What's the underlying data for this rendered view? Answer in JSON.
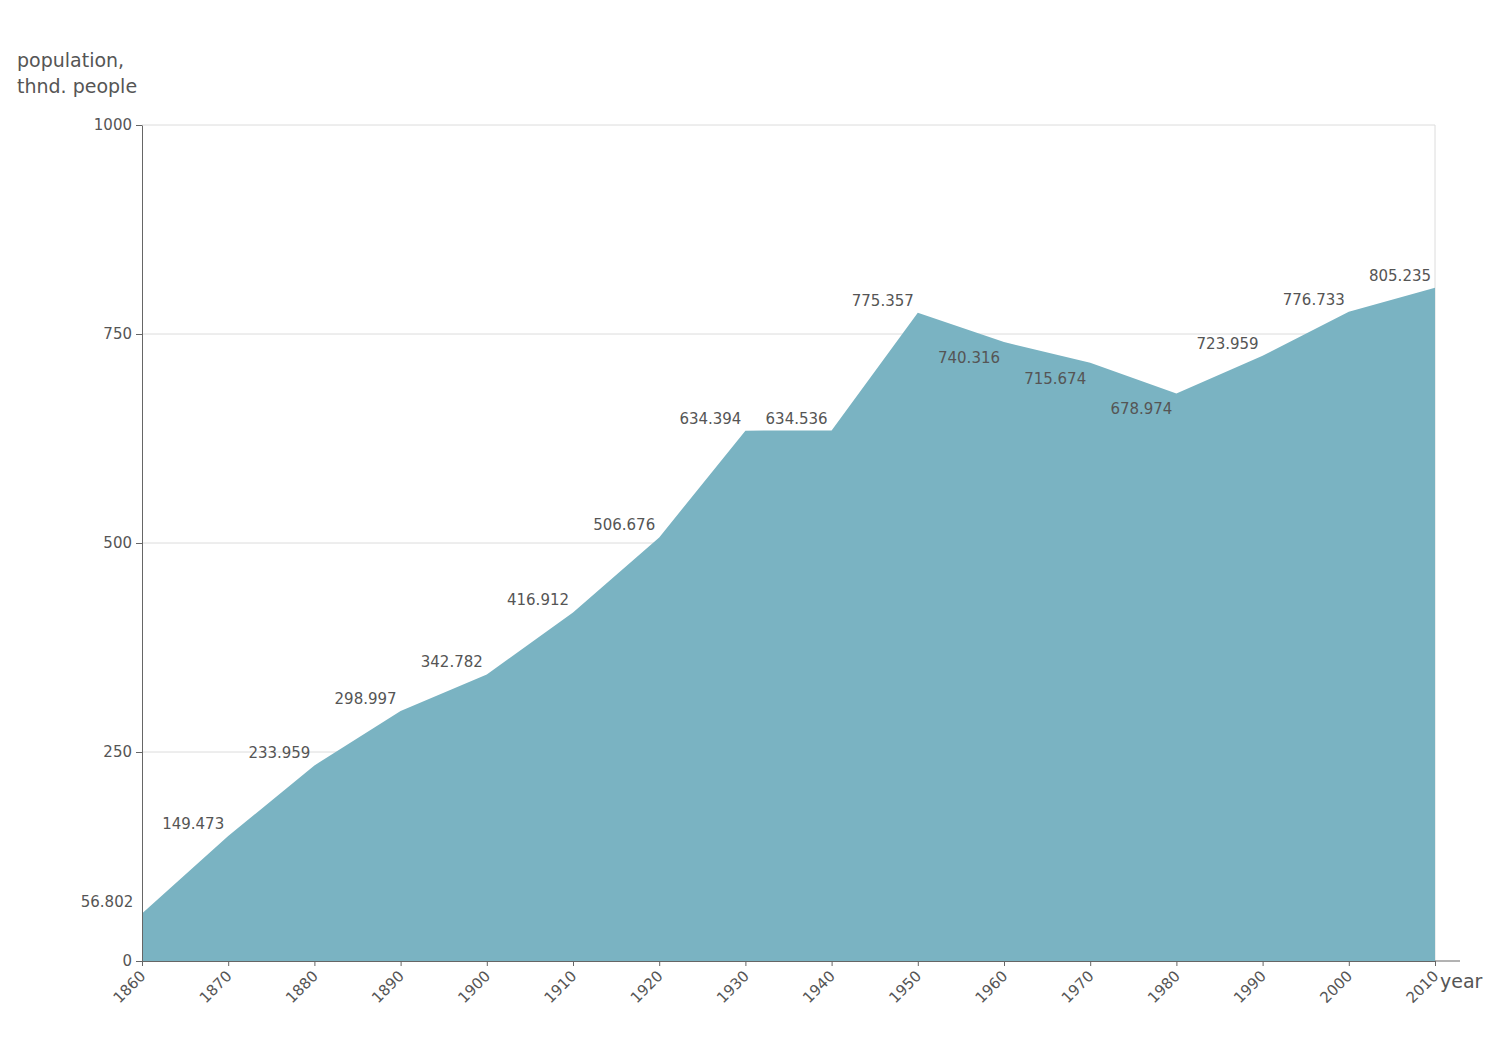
{
  "chart_data": {
    "type": "area",
    "xlabel": "year",
    "ylabel": [
      "population,",
      "thnd. people"
    ],
    "x": [
      1860,
      1870,
      1880,
      1890,
      1900,
      1910,
      1920,
      1930,
      1940,
      1950,
      1960,
      1970,
      1980,
      1990,
      2000,
      2010
    ],
    "values": [
      56.802,
      149.473,
      233.959,
      298.997,
      342.782,
      416.912,
      506.676,
      634.394,
      634.536,
      775.357,
      740.316,
      715.674,
      678.974,
      723.959,
      776.733,
      805.235
    ],
    "color": "#7ab3c2",
    "xlim": [
      1860,
      2010
    ],
    "xticks": [
      1860,
      1870,
      1880,
      1890,
      1900,
      1910,
      1920,
      1930,
      1940,
      1950,
      1960,
      1970,
      1980,
      1990,
      2000,
      2010
    ],
    "ylim": [
      0,
      1000
    ],
    "yticks": [
      0,
      250,
      500,
      750,
      1000
    ],
    "grid": true,
    "data_labels": true
  }
}
